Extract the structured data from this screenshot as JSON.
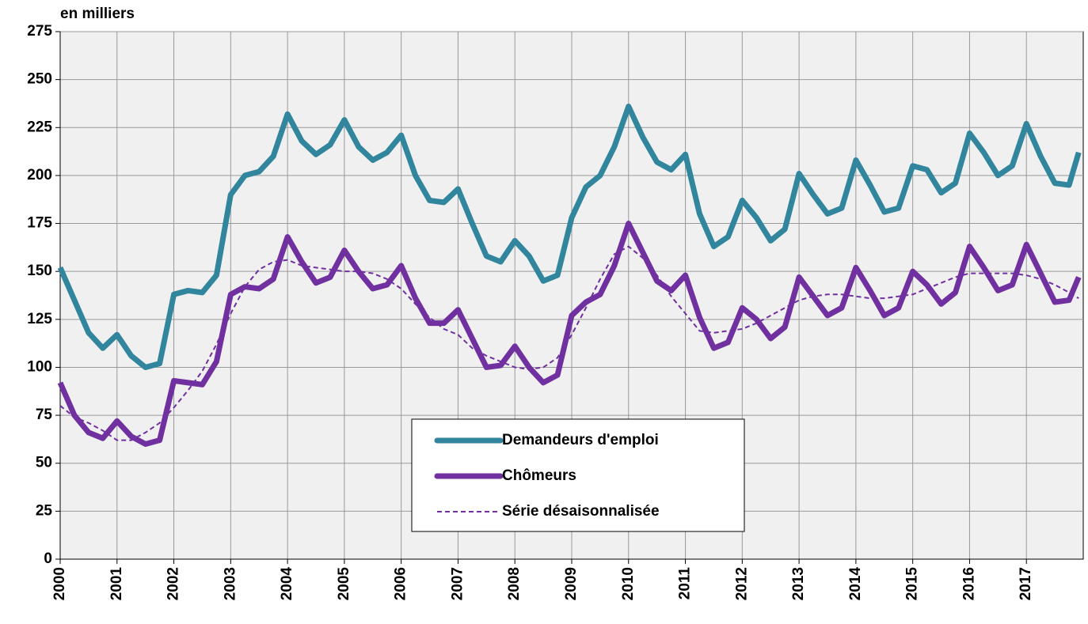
{
  "chart_data": {
    "type": "line",
    "y_label": "en milliers",
    "x": [
      2000,
      2000.25,
      2000.5,
      2000.75,
      2001,
      2001.25,
      2001.5,
      2001.75,
      2002,
      2002.25,
      2002.5,
      2002.75,
      2003,
      2003.25,
      2003.5,
      2003.75,
      2004,
      2004.25,
      2004.5,
      2004.75,
      2005,
      2005.25,
      2005.5,
      2005.75,
      2006,
      2006.25,
      2006.5,
      2006.75,
      2007,
      2007.25,
      2007.5,
      2007.75,
      2008,
      2008.25,
      2008.5,
      2008.75,
      2009,
      2009.25,
      2009.5,
      2009.75,
      2010,
      2010.25,
      2010.5,
      2010.75,
      2011,
      2011.25,
      2011.5,
      2011.75,
      2012,
      2012.25,
      2012.5,
      2012.75,
      2013,
      2013.25,
      2013.5,
      2013.75,
      2014,
      2014.25,
      2014.5,
      2014.75,
      2015,
      2015.25,
      2015.5,
      2015.75,
      2016,
      2016.25,
      2016.5,
      2016.75,
      2017,
      2017.25,
      2017.5,
      2017.75,
      2017.92
    ],
    "series": [
      {
        "name": "Demandeurs d'emploi",
        "color": "#31859c",
        "dashed": false,
        "values": [
          152,
          135,
          118,
          110,
          117,
          106,
          100,
          102,
          138,
          140,
          139,
          148,
          190,
          200,
          202,
          210,
          232,
          218,
          211,
          216,
          229,
          215,
          208,
          212,
          221,
          200,
          187,
          186,
          193,
          175,
          158,
          155,
          166,
          158,
          145,
          148,
          178,
          194,
          200,
          215,
          236,
          220,
          207,
          203,
          211,
          180,
          163,
          168,
          187,
          178,
          166,
          172,
          201,
          190,
          180,
          183,
          208,
          195,
          181,
          183,
          205,
          203,
          191,
          196,
          222,
          212,
          200,
          205,
          227,
          210,
          196,
          195,
          212
        ]
      },
      {
        "name": "Chômeurs",
        "color": "#7030a0",
        "dashed": false,
        "values": [
          92,
          75,
          66,
          63,
          72,
          64,
          60,
          62,
          93,
          92,
          91,
          103,
          138,
          142,
          141,
          146,
          168,
          155,
          144,
          147,
          161,
          150,
          141,
          143,
          153,
          136,
          123,
          123,
          130,
          115,
          100,
          101,
          111,
          100,
          92,
          96,
          127,
          134,
          138,
          153,
          175,
          160,
          145,
          140,
          148,
          126,
          110,
          113,
          131,
          125,
          115,
          121,
          147,
          137,
          127,
          131,
          152,
          140,
          127,
          131,
          150,
          143,
          133,
          139,
          163,
          152,
          140,
          143,
          164,
          149,
          134,
          135,
          147
        ]
      },
      {
        "name": "Série désaisonnalisée",
        "color": "#7030a0",
        "dashed": true,
        "values": [
          80,
          74,
          71,
          67,
          62,
          62,
          66,
          71,
          79,
          88,
          98,
          112,
          128,
          142,
          151,
          155,
          156,
          153,
          152,
          151,
          150,
          150,
          149,
          146,
          141,
          133,
          126,
          120,
          117,
          110,
          106,
          103,
          100,
          99,
          100,
          105,
          117,
          131,
          146,
          159,
          163,
          157,
          148,
          137,
          128,
          119,
          118,
          119,
          120,
          123,
          127,
          131,
          135,
          137,
          138,
          138,
          137,
          136,
          136,
          137,
          138,
          141,
          144,
          147,
          149,
          149,
          149,
          149,
          148,
          146,
          143,
          139,
          136
        ]
      }
    ],
    "xlim": [
      2000,
      2018
    ],
    "xticks": [
      2000,
      2001,
      2002,
      2003,
      2004,
      2005,
      2006,
      2007,
      2008,
      2009,
      2010,
      2011,
      2012,
      2013,
      2014,
      2015,
      2016,
      2017
    ],
    "ylim": [
      0,
      275
    ],
    "yticks": [
      0,
      25,
      50,
      75,
      100,
      125,
      150,
      175,
      200,
      225,
      250,
      275
    ],
    "grid": true,
    "legend_position": "lower-center"
  }
}
